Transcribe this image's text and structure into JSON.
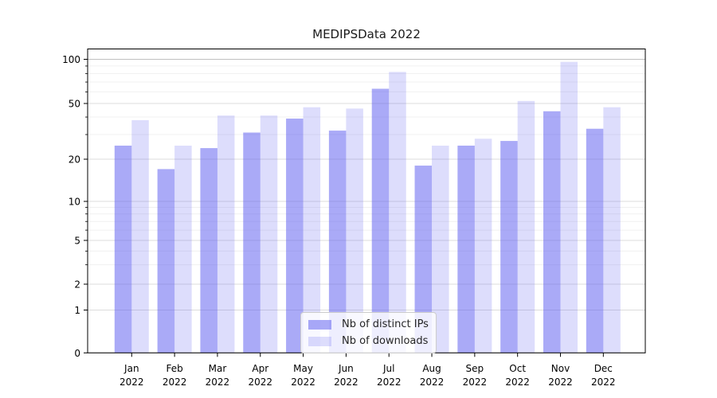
{
  "title": "MEDIPSData 2022",
  "legend": {
    "items": [
      {
        "label": "Nb of distinct IPs",
        "color": "#5555f0",
        "opacity": 0.5
      },
      {
        "label": "Nb of downloads",
        "color": "#5555f0",
        "opacity": 0.2
      }
    ]
  },
  "axis_colors": {
    "frame": "#000000",
    "major_grid": "#dcdcdc",
    "top_grid": "#c0c0c0",
    "minor_grid": "#f0f0f0"
  },
  "chart_data": {
    "type": "bar",
    "title": "MEDIPSData 2022",
    "categories": [
      "Jan 2022",
      "Feb 2022",
      "Mar 2022",
      "Apr 2022",
      "May 2022",
      "Jun 2022",
      "Jul 2022",
      "Aug 2022",
      "Sep 2022",
      "Oct 2022",
      "Nov 2022",
      "Dec 2022"
    ],
    "series": [
      {
        "name": "Nb of distinct IPs",
        "color": "#5555f0",
        "opacity": 0.5,
        "values": [
          25,
          17,
          24,
          31,
          39,
          32,
          63,
          18,
          25,
          27,
          44,
          33
        ]
      },
      {
        "name": "Nb of downloads",
        "color": "#5555f0",
        "opacity": 0.2,
        "values": [
          38,
          25,
          41,
          41,
          47,
          46,
          82,
          25,
          28,
          52,
          96,
          47
        ]
      }
    ],
    "xlabel": "",
    "ylabel": "",
    "yscale": "symlog",
    "ylim": [
      0,
      110
    ],
    "y_ticks_major": [
      0,
      1,
      2,
      5,
      10,
      20,
      50,
      100
    ],
    "y_ticks_minor": [
      3,
      4,
      6,
      7,
      8,
      9,
      30,
      40,
      60,
      70,
      80,
      90
    ],
    "grid": "horizontal major+minor",
    "legend_position": "lower center inside plot"
  }
}
